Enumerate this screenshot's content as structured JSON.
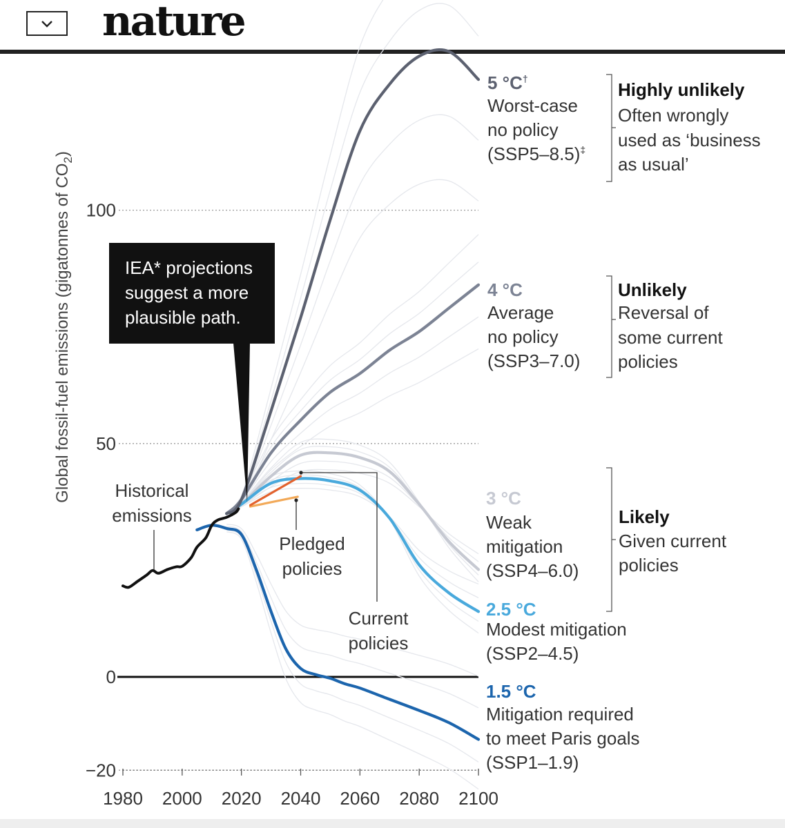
{
  "header": {
    "logo_text": "nature",
    "menu_icon": "chevron-down-icon"
  },
  "colors": {
    "historical": "#111111",
    "ssp585": "#5c6170",
    "ssp370": "#7c8394",
    "ssp460": "#c6c9d2",
    "ssp245": "#49a9dc",
    "ssp119": "#1c65ad",
    "iea_current": "#e2622e",
    "iea_pledged": "#f2a958",
    "background_runs": "#e5e7ec"
  },
  "chart_data": {
    "type": "line",
    "ylabel": "Global fossil-fuel emissions (gigatonnes of CO",
    "ylabel_sub": "2",
    "ylabel_close": ")",
    "xlim": [
      1980,
      2100
    ],
    "ylim": [
      -20,
      130
    ],
    "x_ticks": [
      "1980",
      "2000",
      "2020",
      "2040",
      "2060",
      "2080",
      "2100"
    ],
    "y_ticks": [
      {
        "value": 100,
        "label": "100"
      },
      {
        "value": 50,
        "label": "50"
      },
      {
        "value": 0,
        "label": "0"
      },
      {
        "value": -20,
        "label": "−20"
      }
    ],
    "series": [
      {
        "name": "Historical emissions",
        "color_key": "historical",
        "points": [
          [
            1980,
            19.5
          ],
          [
            1982,
            19.2
          ],
          [
            1985,
            20.5
          ],
          [
            1988,
            21.8
          ],
          [
            1990,
            22.8
          ],
          [
            1992,
            22.2
          ],
          [
            1995,
            23.0
          ],
          [
            1998,
            23.6
          ],
          [
            2000,
            23.7
          ],
          [
            2003,
            25.5
          ],
          [
            2005,
            27.8
          ],
          [
            2008,
            29.8
          ],
          [
            2010,
            32.5
          ],
          [
            2012,
            33.6
          ],
          [
            2015,
            34.2
          ],
          [
            2018,
            35.2
          ],
          [
            2019,
            36.0
          ]
        ]
      },
      {
        "name": "5 °C Worst-case no policy (SSP5-8.5)",
        "color_key": "ssp585",
        "points": [
          [
            2015,
            35.0
          ],
          [
            2020,
            38.0
          ],
          [
            2030,
            57.0
          ],
          [
            2040,
            77.0
          ],
          [
            2050,
            98.0
          ],
          [
            2060,
            117.0
          ],
          [
            2070,
            127.0
          ],
          [
            2080,
            133.0
          ],
          [
            2090,
            134.0
          ],
          [
            2100,
            128.0
          ]
        ]
      },
      {
        "name": "4 °C Average no policy (SSP3-7.0)",
        "color_key": "ssp370",
        "points": [
          [
            2015,
            35.0
          ],
          [
            2020,
            38.0
          ],
          [
            2030,
            48.0
          ],
          [
            2040,
            55.0
          ],
          [
            2050,
            61.0
          ],
          [
            2060,
            65.0
          ],
          [
            2070,
            70.0
          ],
          [
            2080,
            74.0
          ],
          [
            2090,
            79.0
          ],
          [
            2100,
            84.0
          ]
        ]
      },
      {
        "name": "3 °C Weak mitigation (SSP4-6.0)",
        "color_key": "ssp460",
        "points": [
          [
            2015,
            35.0
          ],
          [
            2020,
            37.0
          ],
          [
            2030,
            43.0
          ],
          [
            2040,
            47.5
          ],
          [
            2050,
            48.0
          ],
          [
            2060,
            47.0
          ],
          [
            2070,
            44.0
          ],
          [
            2080,
            37.0
          ],
          [
            2090,
            29.0
          ],
          [
            2100,
            23.0
          ]
        ]
      },
      {
        "name": "2.5 °C Modest mitigation (SSP2-4.5)",
        "color_key": "ssp245",
        "points": [
          [
            2015,
            35.0
          ],
          [
            2020,
            37.0
          ],
          [
            2030,
            41.5
          ],
          [
            2040,
            42.5
          ],
          [
            2050,
            42.0
          ],
          [
            2060,
            40.0
          ],
          [
            2070,
            34.0
          ],
          [
            2080,
            24.0
          ],
          [
            2090,
            18.0
          ],
          [
            2100,
            14.0
          ]
        ]
      },
      {
        "name": "1.5 °C Mitigation required to meet Paris goals (SSP1-1.9)",
        "color_key": "ssp119",
        "points": [
          [
            2005,
            31.5
          ],
          [
            2010,
            32.5
          ],
          [
            2015,
            31.8
          ],
          [
            2020,
            30.5
          ],
          [
            2025,
            23.0
          ],
          [
            2030,
            14.0
          ],
          [
            2035,
            6.0
          ],
          [
            2040,
            1.8
          ],
          [
            2045,
            0.5
          ],
          [
            2050,
            -0.3
          ],
          [
            2055,
            -1.5
          ],
          [
            2060,
            -2.4
          ],
          [
            2070,
            -4.8
          ],
          [
            2080,
            -7.2
          ],
          [
            2090,
            -9.8
          ],
          [
            2100,
            -13.4
          ]
        ]
      },
      {
        "name": "Current policies (IEA)",
        "color_key": "iea_current",
        "points": [
          [
            2023,
            36.8
          ],
          [
            2040,
            43.0
          ]
        ]
      },
      {
        "name": "Pledged policies (IEA)",
        "color_key": "iea_pledged",
        "points": [
          [
            2023,
            36.5
          ],
          [
            2039,
            38.6
          ]
        ]
      }
    ],
    "scenario_labels": [
      {
        "temp": "5 °C",
        "temp_mark": "†",
        "lines": [
          "Worst-case",
          "no policy"
        ],
        "code": "(SSP5–8.5)",
        "code_mark": "‡",
        "color_key": "ssp585"
      },
      {
        "temp": "4 °C",
        "lines": [
          "Average",
          "no policy"
        ],
        "code": "(SSP3–7.0)",
        "color_key": "ssp370"
      },
      {
        "temp": "3 °C",
        "lines": [
          "Weak",
          "mitigation"
        ],
        "code": "(SSP4–6.0)",
        "color_key": "ssp460"
      },
      {
        "temp": "2.5 °C",
        "lines": [
          "Modest mitigation"
        ],
        "code": "(SSP2–4.5)",
        "color_key": "ssp245"
      },
      {
        "temp": "1.5 °C",
        "lines": [
          "Mitigation required",
          "to meet Paris goals"
        ],
        "code": "(SSP1–1.9)",
        "color_key": "ssp119"
      }
    ],
    "likelihood_groups": [
      {
        "heading": "Highly unlikely",
        "lines": [
          "Often wrongly",
          "used as ‘business",
          "as usual’"
        ]
      },
      {
        "heading": "Unlikely",
        "lines": [
          "Reversal of",
          "some current",
          "policies"
        ]
      },
      {
        "heading": "Likely",
        "lines": [
          "Given current",
          "policies"
        ]
      }
    ],
    "annotations": {
      "callout": [
        "IEA* projections",
        "suggest a more",
        "plausible path."
      ],
      "historical": [
        "Historical",
        "emissions"
      ],
      "pledged": [
        "Pledged",
        "policies"
      ],
      "current": [
        "Current",
        "policies"
      ]
    }
  }
}
